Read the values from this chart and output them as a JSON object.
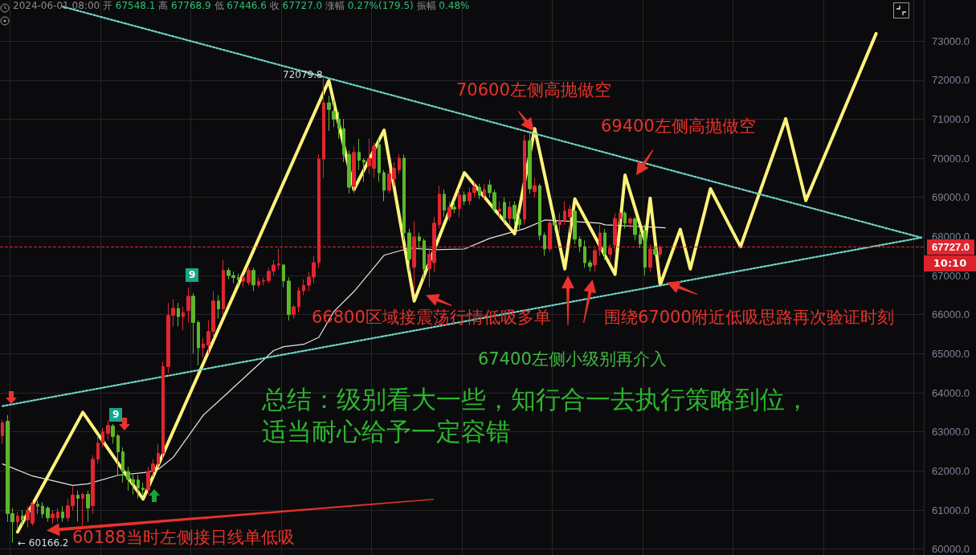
{
  "chart_data": {
    "type": "candlestick",
    "subtitle": "2024-06-01 08:00 开 67548.1 高 67768.9 低 67446.6 收 67727.0 涨幅 0.27%(179.5) 振幅 0.48%",
    "categories": [
      null,
      null,
      null,
      null,
      null,
      null,
      null,
      null,
      null,
      null,
      null,
      null,
      null,
      null,
      null,
      null,
      null,
      null,
      null,
      null,
      null,
      null,
      null,
      null,
      null,
      null,
      null,
      null,
      null,
      null,
      null,
      null,
      null,
      null,
      null,
      null,
      null,
      null,
      null,
      null,
      null,
      null,
      null,
      null,
      null,
      null,
      null,
      null,
      null,
      null,
      null,
      null,
      null,
      null,
      null,
      null,
      null,
      null,
      null,
      null,
      null,
      null,
      null,
      null,
      null,
      null,
      null,
      null,
      null,
      null,
      null,
      null,
      null,
      null,
      null,
      null,
      null,
      null,
      null,
      null,
      null,
      null,
      null,
      null,
      null,
      null,
      null,
      null,
      null,
      null,
      null,
      null,
      null,
      null,
      null,
      null,
      null,
      null,
      null,
      null,
      null,
      null,
      null,
      null,
      null,
      null,
      null,
      null,
      null,
      null,
      null,
      null,
      null,
      null,
      null,
      null,
      null,
      null,
      null,
      null,
      null,
      null,
      null,
      null,
      null,
      null,
      null,
      null,
      null,
      null,
      null,
      null,
      null,
      null,
      null,
      null,
      null,
      null,
      null,
      null,
      null,
      null,
      null,
      null,
      null,
      null,
      null,
      null,
      null,
      null,
      null,
      null,
      null,
      null,
      null,
      null,
      null,
      null,
      null,
      null,
      null,
      null,
      null,
      null,
      null,
      null,
      null,
      null,
      null,
      null,
      null,
      null,
      null,
      null,
      null,
      null,
      null,
      null,
      null,
      null,
      null,
      null,
      null,
      null
    ],
    "colors": [
      "#e0262f",
      "#5cb82b",
      "#5cb82b",
      "#e0262f",
      "#5cb82b",
      "#e0262f",
      "#e0262f",
      "#5cb82b",
      "#5cb82b",
      "#5cb82b",
      "#e0262f",
      "#e0262f",
      "#5cb82b",
      "#e0262f",
      "#e0262f",
      "#5cb82b",
      "#e0262f",
      "#5cb82b",
      "#e0262f",
      "#e0262f",
      "#e0262f",
      "#e0262f",
      "#5cb82b",
      "#5cb82b",
      "#5cb82b",
      "#5cb82b",
      "#5cb82b",
      "#5cb82b",
      "#5cb82b",
      "#e0262f",
      "#e0262f",
      "#e0262f",
      "#e0262f",
      "#e0262f",
      "#e0262f",
      "#5cb82b",
      "#e0262f",
      "#e0262f",
      "#5cb82b",
      "#5cb82b",
      "#e0262f",
      "#e0262f",
      "#e0262f",
      "#5cb82b",
      "#e0262f",
      "#5cb82b",
      "#5cb82b",
      "#5cb82b",
      "#e0262f",
      "#e0262f",
      "#5cb82b",
      "#e0262f",
      "#e0262f",
      "#e0262f",
      "#e0262f",
      "#e0262f",
      "#5cb82b",
      "#5cb82b",
      "#e0262f",
      "#e0262f",
      "#e0262f",
      "#e0262f",
      "#e0262f",
      "#e0262f",
      "#e0262f",
      "#5cb82b",
      "#5cb82b",
      "#5cb82b",
      "#5cb82b",
      "#5cb82b",
      "#e0262f",
      "#5cb82b",
      "#5cb82b",
      "#e0262f",
      "#e0262f",
      "#5cb82b",
      "#5cb82b",
      "#e0262f",
      "#e0262f",
      "#e0262f",
      "#5cb82b",
      "#5cb82b",
      "#e0262f",
      "#5cb82b",
      "#5cb82b",
      "#e0262f",
      "#e0262f",
      "#e0262f",
      "#5cb82b",
      "#e0262f",
      "#5cb82b",
      "#e0262f",
      "#5cb82b",
      "#e0262f",
      "#e0262f",
      "#5cb82b",
      "#e0262f",
      "#5cb82b",
      "#5cb82b",
      "#e0262f",
      "#5cb82b",
      "#e0262f",
      "#5cb82b",
      "#5cb82b",
      "#e0262f",
      "#5cb82b",
      "#e0262f",
      "#5cb82b",
      "#5cb82b",
      "#e0262f",
      "#5cb82b",
      "#e0262f",
      "#e0262f",
      "#e0262f",
      "#5cb82b",
      "#5cb82b",
      "#5cb82b",
      "#5cb82b",
      "#e0262f",
      "#e0262f",
      "#5cb82b",
      "#e0262f",
      "#e0262f",
      "#e0262f",
      "#5cb82b",
      "#e0262f",
      "#5cb82b",
      "#5cb82b",
      "#5cb82b",
      "#e0262f",
      "#5cb82b",
      "#e0262f",
      null,
      null,
      null,
      null,
      null,
      null,
      null,
      null,
      null,
      null,
      null,
      null,
      null,
      null,
      null,
      null,
      null,
      null,
      null,
      null,
      null,
      null,
      null,
      null,
      null,
      null,
      null,
      null,
      null,
      null,
      null,
      null,
      null,
      null,
      null,
      null,
      null,
      null,
      null,
      null,
      null,
      null,
      null,
      null,
      null,
      null,
      null,
      null,
      null,
      null,
      null,
      null
    ],
    "ohlc": [
      [
        62900,
        63300,
        62700,
        63230
      ],
      [
        63270,
        63430,
        60700,
        60910
      ],
      [
        60910,
        61050,
        60166.2,
        60700
      ],
      [
        60700,
        60950,
        60500,
        60850
      ],
      [
        60850,
        61000,
        60600,
        60750
      ],
      [
        60750,
        61100,
        60550,
        61000
      ],
      [
        60660,
        61250,
        60600,
        61150
      ],
      [
        61150,
        61250,
        60900,
        61100
      ],
      [
        61100,
        61200,
        60800,
        60900
      ],
      [
        61050,
        61100,
        60700,
        60800
      ],
      [
        60800,
        61000,
        60650,
        60900
      ],
      [
        60800,
        61050,
        60700,
        60950
      ],
      [
        60950,
        61100,
        60700,
        60800
      ],
      [
        60800,
        61300,
        60700,
        61110
      ],
      [
        61110,
        61600,
        61000,
        61380
      ],
      [
        61380,
        61500,
        60700,
        61300
      ],
      [
        61300,
        61450,
        60600,
        61400
      ],
      [
        61400,
        61500,
        60700,
        61050
      ],
      [
        61110,
        62400,
        60900,
        62300
      ],
      [
        62300,
        62900,
        62200,
        62710
      ],
      [
        62710,
        63100,
        62600,
        63000
      ],
      [
        62960,
        63300,
        62800,
        63170
      ],
      [
        63150,
        63200,
        62700,
        62880
      ],
      [
        62900,
        62950,
        61900,
        62490
      ],
      [
        62490,
        62600,
        61700,
        61980
      ],
      [
        61980,
        62100,
        61500,
        61780
      ],
      [
        61780,
        61900,
        61400,
        61700
      ],
      [
        61770,
        61900,
        61300,
        61560
      ],
      [
        61560,
        61700,
        61400,
        61520
      ],
      [
        61520,
        62100,
        61400,
        61980
      ],
      [
        61980,
        62300,
        61850,
        62180
      ],
      [
        62180,
        62700,
        62100,
        62450
      ],
      [
        62450,
        64800,
        62300,
        64670
      ],
      [
        64670,
        66300,
        64500,
        65980
      ],
      [
        65980,
        66400,
        65700,
        66160
      ],
      [
        66160,
        66300,
        65700,
        65950
      ],
      [
        65950,
        66200,
        65600,
        66050
      ],
      [
        66100,
        66700,
        65800,
        66470
      ],
      [
        66470,
        66550,
        65000,
        65800
      ],
      [
        65800,
        65850,
        64700,
        65150
      ],
      [
        65150,
        65400,
        64900,
        65250
      ],
      [
        65220,
        65850,
        65000,
        65570
      ],
      [
        65570,
        66600,
        65400,
        66350
      ],
      [
        66350,
        66500,
        65900,
        66150
      ],
      [
        66150,
        67400,
        66000,
        67130
      ],
      [
        67130,
        67200,
        66900,
        67000
      ],
      [
        67000,
        67100,
        66800,
        66950
      ],
      [
        66950,
        67050,
        66750,
        66900
      ],
      [
        66850,
        67000,
        66700,
        66950
      ],
      [
        66820,
        67200,
        66750,
        67130
      ],
      [
        67130,
        67200,
        66600,
        66760
      ],
      [
        66760,
        66950,
        66700,
        66850
      ],
      [
        66850,
        66950,
        66750,
        66870
      ],
      [
        66870,
        67200,
        66800,
        67110
      ],
      [
        67110,
        67400,
        67000,
        67270
      ],
      [
        67270,
        67680,
        67150,
        67300
      ],
      [
        67270,
        67300,
        66700,
        66860
      ],
      [
        66860,
        66950,
        65850,
        66000
      ],
      [
        66000,
        66250,
        65900,
        66200
      ],
      [
        66200,
        66700,
        66050,
        66610
      ],
      [
        66610,
        66900,
        66500,
        66750
      ],
      [
        66750,
        67100,
        66600,
        66960
      ],
      [
        66960,
        67500,
        66800,
        67330
      ],
      [
        67330,
        70100,
        67200,
        69980
      ],
      [
        69980,
        72079.8,
        69500,
        71420
      ],
      [
        71420,
        71600,
        70700,
        71250
      ],
      [
        71200,
        71500,
        70800,
        71000
      ],
      [
        71000,
        71200,
        70500,
        70760
      ],
      [
        70760,
        71000,
        69900,
        70100
      ],
      [
        70100,
        70200,
        69100,
        69260
      ],
      [
        69280,
        70300,
        69100,
        70150
      ],
      [
        70150,
        70500,
        69700,
        69950
      ],
      [
        69950,
        70000,
        69400,
        69900
      ],
      [
        69800,
        70500,
        69600,
        70000
      ],
      [
        69740,
        70400,
        69500,
        70310
      ],
      [
        70350,
        70500,
        69400,
        69630
      ],
      [
        69630,
        69700,
        68900,
        69180
      ],
      [
        69180,
        69700,
        69100,
        69600
      ],
      [
        69470,
        69900,
        69300,
        69740
      ],
      [
        69700,
        70100,
        69600,
        70000
      ],
      [
        70000,
        70100,
        67900,
        68090
      ],
      [
        68090,
        68200,
        67100,
        67420
      ],
      [
        67210,
        68400,
        66600,
        67990
      ],
      [
        67990,
        68100,
        67700,
        67890
      ],
      [
        67890,
        67950,
        66900,
        67170
      ],
      [
        67170,
        67700,
        66700,
        67540
      ],
      [
        67330,
        68500,
        67100,
        68340
      ],
      [
        68300,
        69300,
        68200,
        69080
      ],
      [
        69080,
        69200,
        68500,
        68670
      ],
      [
        68500,
        68900,
        68400,
        68750
      ],
      [
        68750,
        68900,
        68600,
        68700
      ],
      [
        68710,
        69200,
        68500,
        69060
      ],
      [
        69060,
        69150,
        68800,
        68900
      ],
      [
        68910,
        69250,
        68800,
        69120
      ],
      [
        69120,
        69400,
        69000,
        69260
      ],
      [
        69260,
        69350,
        68950,
        69050
      ],
      [
        69050,
        69350,
        68950,
        69200
      ],
      [
        69320,
        69450,
        69000,
        69120
      ],
      [
        69120,
        69200,
        68600,
        68700
      ],
      [
        68650,
        68900,
        68500,
        68700
      ],
      [
        68870,
        69000,
        68300,
        68460
      ],
      [
        68460,
        68900,
        68300,
        68750
      ],
      [
        68800,
        68900,
        68300,
        68450
      ],
      [
        68440,
        68600,
        68200,
        68300
      ],
      [
        68440,
        70600,
        68300,
        70450
      ],
      [
        70450,
        70700,
        69100,
        69220
      ],
      [
        69150,
        69500,
        69000,
        69300
      ],
      [
        69300,
        69350,
        67900,
        68030
      ],
      [
        68030,
        68100,
        67500,
        67680
      ],
      [
        67680,
        68400,
        67600,
        68340
      ],
      [
        68340,
        68500,
        68200,
        68300
      ],
      [
        68300,
        68600,
        68100,
        68400
      ],
      [
        68400,
        68900,
        68300,
        68650
      ],
      [
        68500,
        68800,
        68100,
        68700
      ],
      [
        68650,
        68700,
        67800,
        67930
      ],
      [
        67930,
        68000,
        67600,
        67750
      ],
      [
        67740,
        67900,
        67200,
        67330
      ],
      [
        67330,
        67400,
        67100,
        67230
      ],
      [
        67270,
        67700,
        67100,
        67640
      ],
      [
        67640,
        68300,
        67500,
        68090
      ],
      [
        68090,
        68200,
        67400,
        67540
      ],
      [
        67540,
        67800,
        67400,
        67700
      ],
      [
        67780,
        68600,
        67600,
        68460
      ],
      [
        68460,
        68700,
        68300,
        68600
      ],
      [
        68600,
        68650,
        68200,
        68340
      ],
      [
        68340,
        68500,
        68200,
        68450
      ],
      [
        68450,
        68500,
        67900,
        68050
      ],
      [
        68050,
        68150,
        67700,
        67810
      ],
      [
        68150,
        68300,
        67000,
        67210
      ],
      [
        67210,
        67800,
        67100,
        67680
      ],
      [
        67680,
        67750,
        67500,
        67540
      ],
      [
        67548.1,
        67768.9,
        67446.6,
        67727.0
      ],
      null,
      null,
      null,
      null,
      null,
      null,
      null,
      null,
      null,
      null,
      null,
      null,
      null,
      null,
      null,
      null,
      null,
      null,
      null,
      null,
      null,
      null,
      null,
      null,
      null,
      null,
      null,
      null,
      null,
      null,
      null,
      null,
      null,
      null,
      null,
      null,
      null,
      null,
      null,
      null,
      null,
      null,
      null,
      null,
      null,
      null,
      null,
      null,
      null,
      null,
      null,
      null
    ],
    "series": [
      {
        "type": "line",
        "color": "#e6e6e6",
        "values": [
          62180,
          null,
          null,
          null,
          null,
          null,
          61870,
          null,
          null,
          null,
          null,
          null,
          null,
          null,
          61630,
          null,
          null,
          61670,
          null,
          null,
          null,
          null,
          null,
          61890,
          null,
          null,
          null,
          null,
          null,
          61970,
          null,
          62040,
          null,
          null,
          62350,
          null,
          null,
          null,
          null,
          null,
          63430,
          null,
          null,
          63780,
          null,
          null,
          null,
          null,
          null,
          null,
          null,
          null,
          null,
          null,
          65080,
          null,
          65180,
          null,
          null,
          null,
          65240,
          null,
          null,
          65420,
          null,
          null,
          66080,
          null,
          null,
          null,
          66590,
          null,
          null,
          null,
          null,
          null,
          67520,
          null,
          null,
          null,
          null,
          67700,
          null,
          null,
          null,
          null,
          67660,
          null,
          null,
          null,
          null,
          null,
          67680,
          null,
          null,
          null,
          null,
          67950,
          null,
          null,
          null,
          null,
          null,
          null,
          68200,
          null,
          null,
          null,
          68420,
          null,
          null,
          null,
          null,
          null,
          68380,
          null,
          null,
          null,
          null,
          68340,
          68300,
          null,
          null,
          null,
          null,
          null,
          null,
          null,
          null,
          null,
          null,
          null,
          68220,
          null,
          null,
          null,
          null,
          null,
          null,
          null,
          null,
          null,
          null,
          null,
          null,
          null,
          null,
          null,
          null,
          null,
          null,
          null,
          null,
          null,
          null,
          null,
          null,
          null,
          null,
          null,
          null,
          null,
          null,
          null,
          null,
          null,
          null,
          null,
          null,
          null,
          null,
          null,
          null,
          null,
          null,
          null,
          null,
          null,
          null,
          null,
          null,
          null,
          null,
          null
        ]
      },
      {
        "type": "line",
        "color": "#fff27a",
        "values": [
          null,
          null,
          null,
          60440,
          null,
          null,
          null,
          null,
          null,
          null,
          null,
          null,
          null,
          null,
          null,
          null,
          63500,
          null,
          null,
          null,
          null,
          null,
          null,
          null,
          null,
          null,
          null,
          null,
          61280,
          null,
          null,
          null,
          null,
          null,
          null,
          null,
          null,
          null,
          null,
          null,
          null,
          null,
          null,
          null,
          null,
          null,
          null,
          null,
          null,
          null,
          null,
          null,
          null,
          null,
          null,
          null,
          null,
          null,
          null,
          null,
          null,
          null,
          null,
          null,
          null,
          71990,
          null,
          null,
          null,
          null,
          69200,
          null,
          null,
          null,
          null,
          null,
          70720,
          null,
          null,
          null,
          null,
          null,
          66350,
          null,
          null,
          null,
          null,
          null,
          null,
          null,
          null,
          null,
          69630,
          null,
          null,
          null,
          null,
          null,
          null,
          null,
          null,
          null,
          68070,
          null,
          null,
          null,
          70760,
          null,
          null,
          null,
          null,
          null,
          67170,
          null,
          68960,
          null,
          null,
          null,
          null,
          null,
          null,
          null,
          67030,
          null,
          69570,
          null,
          null,
          null,
          67870,
          68980,
          null,
          66760,
          null,
          null,
          null,
          68180,
          null,
          67170,
          null,
          null,
          null,
          69220,
          null,
          null,
          null,
          null,
          null,
          67740,
          null,
          null,
          null,
          null,
          null,
          null,
          null,
          null,
          71010,
          null,
          null,
          null,
          68920,
          null,
          null,
          null,
          null,
          null,
          null,
          null,
          null,
          null,
          null,
          null,
          null,
          null,
          73190,
          null,
          null,
          null,
          null,
          null,
          null,
          null,
          null,
          null
        ]
      },
      {
        "type": "line",
        "color": "#6fd6c8",
        "line_style": "dotted",
        "values": [
          null,
          null,
          null,
          null,
          null,
          null,
          null,
          null,
          null,
          null,
          null,
          null,
          73880,
          null,
          null,
          null,
          null,
          null,
          null,
          null,
          null,
          null,
          null,
          null,
          null,
          null,
          null,
          null,
          null,
          null,
          null,
          null,
          null,
          null,
          null,
          null,
          null,
          null,
          null,
          null,
          null,
          null,
          null,
          null,
          null,
          null,
          null,
          null,
          null,
          null,
          null,
          null,
          null,
          null,
          null,
          null,
          null,
          null,
          null,
          null,
          null,
          null,
          null,
          null,
          null,
          null,
          null,
          null,
          null,
          null,
          null,
          null,
          null,
          null,
          null,
          null,
          null,
          null,
          null,
          null,
          null,
          null,
          null,
          null,
          null,
          null,
          null,
          null,
          null,
          null,
          null,
          null,
          null,
          null,
          null,
          null,
          null,
          null,
          null,
          null,
          null,
          null,
          null,
          null,
          null,
          null,
          null,
          null,
          null,
          null,
          null,
          null,
          null,
          null,
          null,
          null,
          null,
          null,
          null,
          null,
          null,
          null,
          null,
          null,
          null,
          null,
          null,
          null,
          null,
          null,
          null,
          null,
          null,
          null,
          null,
          null,
          null,
          null,
          null,
          null,
          null,
          null,
          null,
          null,
          null,
          null,
          null,
          null,
          null,
          null,
          null,
          null,
          null,
          null,
          null,
          null,
          null,
          null,
          null,
          null,
          null,
          null,
          null,
          null,
          null,
          null,
          null,
          null,
          null,
          null,
          null,
          null,
          null,
          null,
          null,
          null,
          null,
          null,
          null,
          null,
          null,
          null,
          null,
          67970
        ]
      },
      {
        "type": "line",
        "color": "#6fd6c8",
        "line_style": "dotted",
        "values": [
          63660,
          null,
          null,
          null,
          null,
          null,
          null,
          null,
          null,
          null,
          null,
          null,
          null,
          null,
          null,
          null,
          null,
          null,
          null,
          null,
          null,
          null,
          null,
          null,
          null,
          null,
          null,
          null,
          null,
          null,
          null,
          null,
          null,
          null,
          null,
          null,
          null,
          null,
          null,
          null,
          null,
          null,
          null,
          null,
          null,
          null,
          null,
          null,
          null,
          null,
          null,
          null,
          null,
          null,
          null,
          null,
          null,
          null,
          null,
          null,
          null,
          null,
          null,
          null,
          null,
          null,
          null,
          null,
          null,
          null,
          null,
          null,
          null,
          null,
          null,
          null,
          null,
          null,
          null,
          null,
          null,
          null,
          null,
          null,
          null,
          null,
          null,
          null,
          null,
          null,
          null,
          null,
          null,
          null,
          null,
          null,
          null,
          null,
          null,
          null,
          null,
          null,
          null,
          null,
          null,
          null,
          null,
          null,
          null,
          null,
          null,
          null,
          null,
          null,
          null,
          null,
          null,
          null,
          null,
          null,
          null,
          null,
          null,
          null,
          null,
          null,
          null,
          null,
          null,
          null,
          null,
          null,
          null,
          null,
          null,
          null,
          null,
          null,
          null,
          null,
          null,
          null,
          null,
          null,
          null,
          null,
          null,
          null,
          null,
          null,
          null,
          null,
          null,
          null,
          null,
          null,
          null,
          null,
          null,
          null,
          null,
          null,
          null,
          null,
          null,
          null,
          null,
          null,
          null,
          null,
          null,
          null,
          null,
          null,
          null,
          null,
          null,
          null,
          null,
          null,
          null,
          null,
          null,
          67970
        ]
      }
    ],
    "ylim": [
      59850,
      74050
    ],
    "yticks": [
      {
        "value": 60000,
        "label": "60000.0"
      },
      {
        "value": 61000,
        "label": "61000.0"
      },
      {
        "value": 62000,
        "label": "62000.0"
      },
      {
        "value": 63000,
        "label": "63000.0"
      },
      {
        "value": 64000,
        "label": "64000.0"
      },
      {
        "value": 65000,
        "label": "65000.0"
      },
      {
        "value": 66000,
        "label": "66000.0"
      },
      {
        "value": 67000,
        "label": "67000.0"
      },
      {
        "value": 68000,
        "label": "68000.0"
      },
      {
        "value": 69000,
        "label": "69000.0"
      },
      {
        "value": 70000,
        "label": "70000.0"
      },
      {
        "value": 71000,
        "label": "71000.0"
      },
      {
        "value": 72000,
        "label": "72000.0"
      },
      {
        "value": 73000,
        "label": "73000.0"
      }
    ],
    "ref_lines": [
      {
        "axis": "y",
        "value": 67727,
        "label": "67727.0",
        "color": "#e0262f",
        "line_style": "dashed"
      }
    ],
    "annotations": [
      "70600左侧高抛做空",
      "69400左侧高抛做空",
      "66800区域接震荡行情低吸多单",
      "围绕67000附近低吸思路再次验证时刻",
      "67400左侧小级别再介入",
      "60188当时左侧接日线单低吸",
      "总结：级别看大一些，知行合一去执行策略到位，",
      "适当耐心给予一定容错",
      "72079.8",
      "← 60166.2",
      "9",
      "9",
      "10:10"
    ],
    "grid": true,
    "line_style": "solid",
    "tick_labels": "y"
  }
}
